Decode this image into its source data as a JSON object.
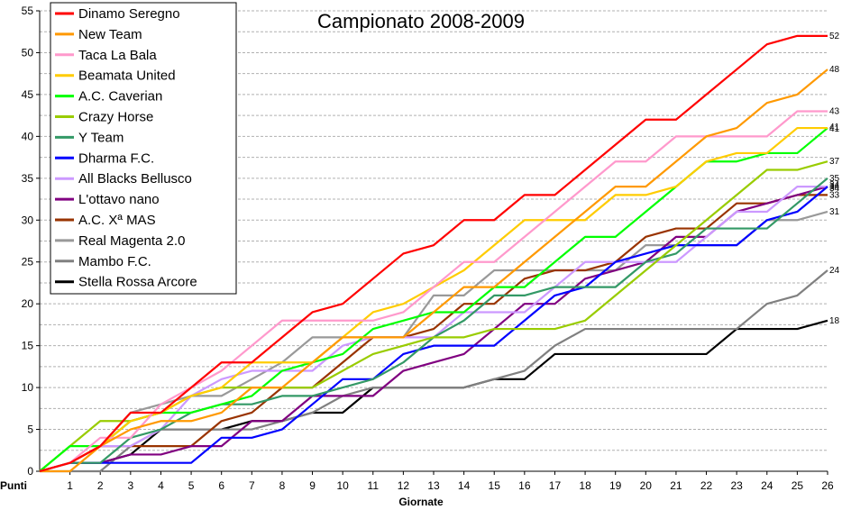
{
  "chart_data": {
    "type": "line",
    "title": "Campionato 2008-2009",
    "xlabel": "Giornate",
    "ylabel": "Punti",
    "x": [
      0,
      1,
      2,
      3,
      4,
      5,
      6,
      7,
      8,
      9,
      10,
      11,
      12,
      13,
      14,
      15,
      16,
      17,
      18,
      19,
      20,
      21,
      22,
      23,
      24,
      25,
      26
    ],
    "x_tick_labels": [
      "1",
      "2",
      "3",
      "4",
      "5",
      "6",
      "7",
      "8",
      "9",
      "10",
      "11",
      "12",
      "13",
      "14",
      "15",
      "16",
      "17",
      "18",
      "19",
      "20",
      "21",
      "22",
      "23",
      "24",
      "25",
      "26"
    ],
    "ylim": [
      0,
      55
    ],
    "y_ticks": [
      0,
      5,
      10,
      15,
      20,
      25,
      30,
      35,
      40,
      45,
      50,
      55
    ],
    "grid": "horizontal dashed",
    "legend_position": "top-left",
    "series": [
      {
        "name": "Dinamo Seregno",
        "color": "#ff0000",
        "end_label": "52",
        "values": [
          0,
          1,
          3,
          7,
          7,
          10,
          13,
          13,
          16,
          19,
          20,
          23,
          26,
          27,
          30,
          30,
          33,
          33,
          36,
          39,
          42,
          42,
          45,
          48,
          51,
          52,
          52
        ]
      },
      {
        "name": "New Team",
        "color": "#ff9900",
        "end_label": "48",
        "values": [
          0,
          0,
          3,
          5,
          6,
          6,
          7,
          10,
          10,
          13,
          16,
          16,
          16,
          19,
          22,
          22,
          25,
          28,
          31,
          34,
          34,
          37,
          40,
          41,
          44,
          45,
          48
        ]
      },
      {
        "name": "Taca La Bala",
        "color": "#ff99cc",
        "end_label": "43",
        "values": [
          0,
          1,
          4,
          4,
          8,
          10,
          12,
          15,
          18,
          18,
          18,
          18,
          19,
          22,
          25,
          25,
          28,
          31,
          34,
          37,
          37,
          40,
          40,
          40,
          40,
          43,
          43
        ]
      },
      {
        "name": "Beamata United",
        "color": "#ffcc00",
        "end_label": "41",
        "values": [
          0,
          1,
          3,
          6,
          7,
          9,
          10,
          13,
          13,
          13,
          16,
          19,
          20,
          22,
          24,
          27,
          30,
          30,
          30,
          33,
          33,
          34,
          37,
          38,
          38,
          41,
          41
        ]
      },
      {
        "name": "A.C. Caverian",
        "color": "#00ff00",
        "end_label": "41",
        "values": [
          0,
          3,
          3,
          6,
          7,
          7,
          8,
          9,
          12,
          13,
          14,
          17,
          18,
          19,
          19,
          22,
          22,
          25,
          28,
          28,
          31,
          34,
          37,
          37,
          38,
          38,
          41
        ]
      },
      {
        "name": "Crazy Horse",
        "color": "#99cc00",
        "end_label": "37",
        "values": [
          0,
          3,
          6,
          6,
          7,
          9,
          10,
          10,
          10,
          10,
          12,
          14,
          15,
          16,
          16,
          17,
          17,
          17,
          18,
          21,
          24,
          27,
          30,
          33,
          36,
          36,
          37
        ]
      },
      {
        "name": "Y Team",
        "color": "#339966",
        "end_label": "35",
        "values": [
          0,
          1,
          1,
          4,
          5,
          7,
          8,
          8,
          9,
          9,
          10,
          11,
          13,
          16,
          18,
          21,
          21,
          22,
          22,
          22,
          25,
          26,
          29,
          29,
          29,
          32,
          35
        ]
      },
      {
        "name": "Dharma F.C.",
        "color": "#0000ff",
        "end_label": "34",
        "values": [
          0,
          1,
          1,
          1,
          1,
          1,
          4,
          4,
          5,
          8,
          11,
          11,
          14,
          15,
          15,
          15,
          18,
          21,
          22,
          25,
          26,
          27,
          27,
          27,
          30,
          31,
          34
        ]
      },
      {
        "name": "All Blacks Bellusco",
        "color": "#cc99ff",
        "end_label": "34",
        "values": [
          0,
          1,
          3,
          3,
          5,
          9,
          11,
          12,
          12,
          12,
          15,
          16,
          16,
          16,
          19,
          19,
          19,
          22,
          25,
          25,
          25,
          25,
          28,
          31,
          31,
          34,
          34
        ]
      },
      {
        "name": "L'ottavo nano",
        "color": "#800080",
        "end_label": "34",
        "values": [
          0,
          1,
          1,
          2,
          2,
          3,
          3,
          6,
          6,
          9,
          9,
          9,
          12,
          13,
          14,
          17,
          20,
          20,
          23,
          24,
          25,
          28,
          28,
          31,
          32,
          33,
          34
        ]
      },
      {
        "name": "A.C. Xª MAS",
        "color": "#993300",
        "end_label": "33",
        "values": [
          0,
          1,
          3,
          3,
          3,
          3,
          6,
          7,
          10,
          10,
          13,
          16,
          16,
          17,
          20,
          20,
          23,
          24,
          24,
          25,
          28,
          29,
          29,
          32,
          32,
          33,
          33
        ]
      },
      {
        "name": "Real Magenta 2.0",
        "color": "#999999",
        "end_label": "31",
        "values": [
          0,
          1,
          3,
          7,
          8,
          9,
          9,
          11,
          13,
          16,
          16,
          16,
          16,
          21,
          21,
          24,
          24,
          24,
          24,
          24,
          27,
          27,
          27,
          27,
          30,
          30,
          31
        ]
      },
      {
        "name": "Mambo F.C.",
        "color": "#808080",
        "end_label": "24",
        "values": [
          0,
          0,
          0,
          3,
          5,
          5,
          5,
          5,
          6,
          7,
          9,
          10,
          10,
          10,
          10,
          11,
          12,
          15,
          17,
          17,
          17,
          17,
          17,
          17,
          20,
          21,
          24
        ]
      },
      {
        "name": "Stella Rossa Arcore",
        "color": "#000000",
        "end_label": "18",
        "values": [
          0,
          1,
          1,
          2,
          5,
          5,
          5,
          6,
          6,
          7,
          7,
          10,
          10,
          10,
          10,
          11,
          11,
          14,
          14,
          14,
          14,
          14,
          14,
          17,
          17,
          17,
          18
        ]
      }
    ]
  }
}
